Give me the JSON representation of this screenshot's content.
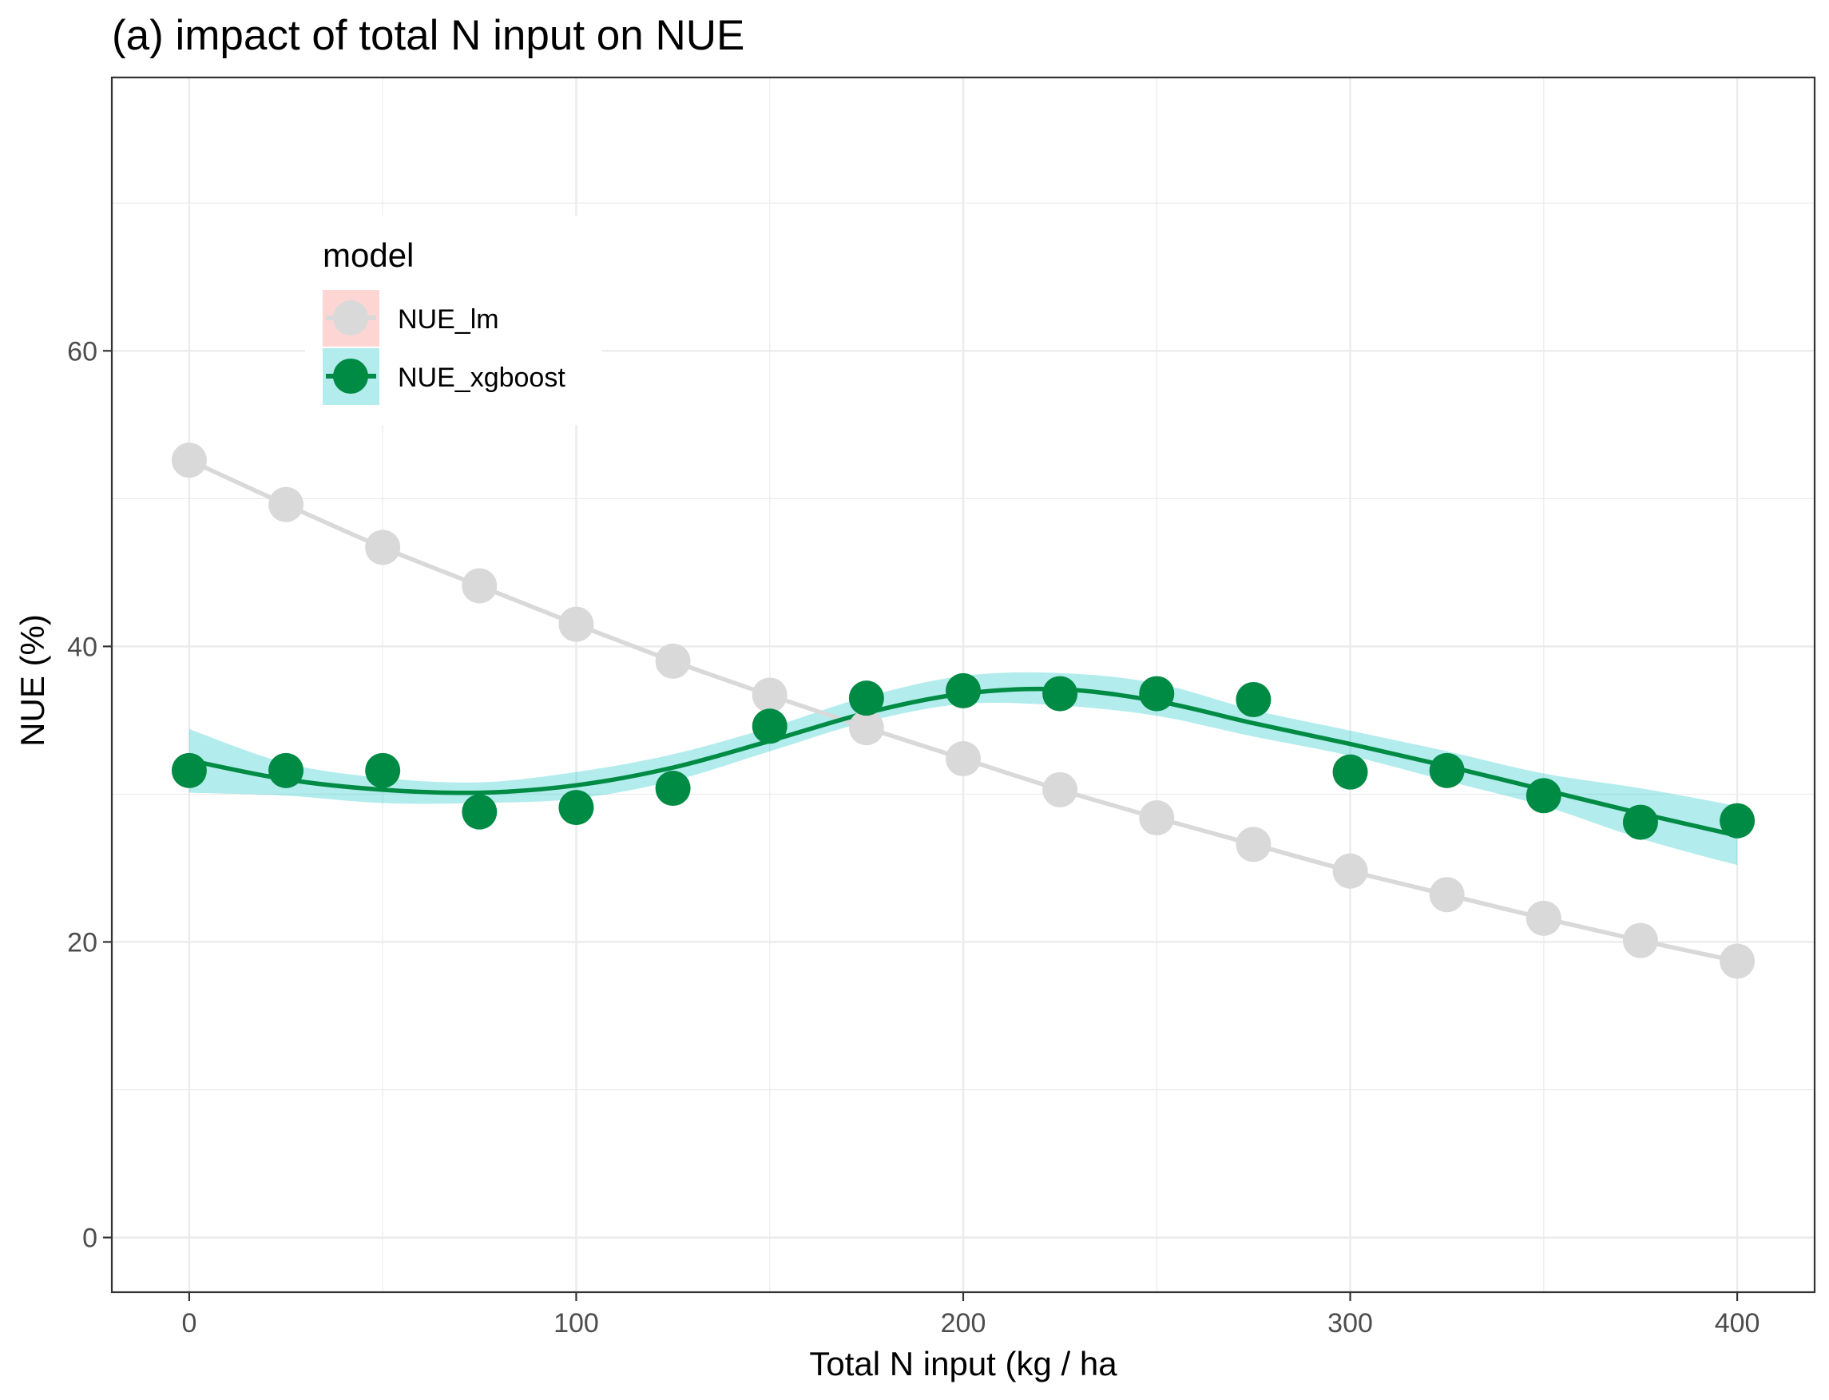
{
  "chart_data": {
    "type": "line",
    "title": "(a) impact of total N input on NUE",
    "xlabel": "Total N input (kg / ha",
    "ylabel": "NUE (%)",
    "xlim": [
      -20,
      420
    ],
    "ylim": [
      -3.7,
      78.5
    ],
    "x_ticks": [
      0,
      100,
      200,
      300,
      400
    ],
    "x_tick_labels": [
      "0",
      "100",
      "200",
      "300",
      "400"
    ],
    "x_minor_ticks": [
      50,
      150,
      250,
      350
    ],
    "y_ticks": [
      0,
      20,
      40,
      60
    ],
    "y_tick_labels": [
      "0",
      "20",
      "40",
      "60"
    ],
    "y_minor_ticks": [
      10,
      30,
      50,
      70
    ],
    "grid": true,
    "legend": {
      "title": "model",
      "placement": "top-left inside"
    },
    "x": [
      0,
      25,
      50,
      75,
      100,
      125,
      150,
      175,
      200,
      225,
      250,
      275,
      300,
      325,
      350,
      375,
      400
    ],
    "series": [
      {
        "name": "NUE_lm",
        "color": "#d9d9d9",
        "ribbon_color": "#f8766d",
        "values": [
          52.6,
          49.6,
          46.7,
          44.1,
          41.5,
          39.0,
          36.7,
          34.5,
          32.4,
          30.3,
          28.4,
          26.6,
          24.8,
          23.2,
          21.6,
          20.1,
          18.7
        ],
        "smooth": [
          52.6,
          49.6,
          46.7,
          44.1,
          41.5,
          39.0,
          36.7,
          34.5,
          32.4,
          30.3,
          28.4,
          26.6,
          24.8,
          23.2,
          21.6,
          20.1,
          18.7
        ]
      },
      {
        "name": "NUE_xgboost",
        "color": "#008b45",
        "ribbon_color": "#00bfc4",
        "values": [
          31.6,
          31.6,
          31.6,
          28.8,
          29.1,
          30.4,
          34.6,
          36.5,
          37.0,
          36.8,
          36.8,
          36.4,
          31.5,
          31.6,
          29.9,
          28.1,
          28.2
        ],
        "smooth": [
          32.3,
          31.0,
          30.3,
          30.1,
          30.6,
          31.8,
          33.6,
          35.5,
          36.8,
          37.1,
          36.3,
          34.8,
          33.4,
          31.9,
          30.3,
          28.7,
          27.2
        ],
        "ribbon_lower": [
          30.1,
          29.9,
          29.4,
          29.4,
          29.7,
          30.9,
          32.9,
          34.9,
          36.1,
          36.0,
          35.3,
          33.9,
          32.6,
          30.9,
          29.2,
          27.0,
          25.2
        ],
        "ribbon_upper": [
          34.4,
          32.1,
          31.1,
          30.8,
          31.5,
          32.7,
          34.5,
          36.6,
          38.0,
          38.2,
          37.5,
          35.7,
          34.3,
          32.9,
          31.4,
          30.4,
          29.2
        ]
      }
    ]
  }
}
